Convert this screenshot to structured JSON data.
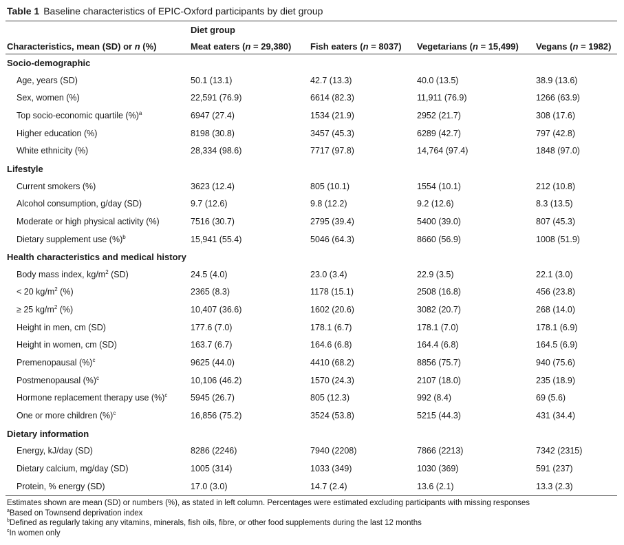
{
  "caption": {
    "label": "Table 1",
    "text": "Baseline characteristics of EPIC-Oxford participants by diet group"
  },
  "header": {
    "group": "Diet group",
    "stub": "Characteristics, mean (SD) or n (%)",
    "columns": [
      "Meat eaters (n = 29,380)",
      "Fish eaters (n = 8037)",
      "Vegetarians (n = 15,499)",
      "Vegans (n = 1982)"
    ]
  },
  "rows": [
    {
      "type": "section",
      "label": "Socio-demographic"
    },
    {
      "type": "data",
      "label": "Age, years (SD)",
      "values": [
        "50.1 (13.1)",
        "42.7 (13.3)",
        "40.0 (13.5)",
        "38.9 (13.6)"
      ]
    },
    {
      "type": "data",
      "label": "Sex, women (%)",
      "values": [
        "22,591 (76.9)",
        "6614 (82.3)",
        "11,911 (76.9)",
        "1266 (63.9)"
      ]
    },
    {
      "type": "data",
      "label": "Top socio-economic quartile (%)",
      "sup": "a",
      "values": [
        "6947 (27.4)",
        "1534 (21.9)",
        "2952 (21.7)",
        "308 (17.6)"
      ]
    },
    {
      "type": "data",
      "label": "Higher education (%)",
      "values": [
        "8198 (30.8)",
        "3457 (45.3)",
        "6289 (42.7)",
        "797 (42.8)"
      ]
    },
    {
      "type": "data",
      "label": "White ethnicity (%)",
      "values": [
        "28,334 (98.6)",
        "7717 (97.8)",
        "14,764 (97.4)",
        "1848 (97.0)"
      ]
    },
    {
      "type": "section",
      "label": "Lifestyle"
    },
    {
      "type": "data",
      "label": "Current smokers (%)",
      "values": [
        "3623 (12.4)",
        "805 (10.1)",
        "1554 (10.1)",
        "212 (10.8)"
      ]
    },
    {
      "type": "data",
      "label": "Alcohol consumption, g/day (SD)",
      "values": [
        "9.7 (12.6)",
        "9.8 (12.2)",
        "9.2 (12.6)",
        "8.3 (13.5)"
      ]
    },
    {
      "type": "data",
      "label": "Moderate or high physical activity (%)",
      "values": [
        "7516 (30.7)",
        "2795 (39.4)",
        "5400 (39.0)",
        "807 (45.3)"
      ]
    },
    {
      "type": "data",
      "label": "Dietary supplement use (%)",
      "sup": "b",
      "values": [
        "15,941 (55.4)",
        "5046 (64.3)",
        "8660 (56.9)",
        "1008 (51.9)"
      ]
    },
    {
      "type": "section",
      "label": "Health characteristics and medical history"
    },
    {
      "type": "data",
      "label": "Body mass index, kg/m",
      "sup": "2",
      "suffix": " (SD)",
      "values": [
        "24.5 (4.0)",
        "23.0 (3.4)",
        "22.9 (3.5)",
        "22.1 (3.0)"
      ]
    },
    {
      "type": "data",
      "label": "< 20 kg/m",
      "sup": "2",
      "suffix": " (%)",
      "values": [
        "2365 (8.3)",
        "1178 (15.1)",
        "2508 (16.8)",
        "456 (23.8)"
      ]
    },
    {
      "type": "data",
      "label": "≥ 25 kg/m",
      "sup": "2",
      "suffix": " (%)",
      "values": [
        "10,407 (36.6)",
        "1602 (20.6)",
        "3082 (20.7)",
        "268 (14.0)"
      ]
    },
    {
      "type": "data",
      "label": "Height in men, cm (SD)",
      "values": [
        "177.6 (7.0)",
        "178.1 (6.7)",
        "178.1 (7.0)",
        "178.1 (6.9)"
      ]
    },
    {
      "type": "data",
      "label": "Height in women, cm (SD)",
      "values": [
        "163.7 (6.7)",
        "164.6 (6.8)",
        "164.4 (6.8)",
        "164.5 (6.9)"
      ]
    },
    {
      "type": "data",
      "label": "Premenopausal (%)",
      "sup": "c",
      "values": [
        "9625 (44.0)",
        "4410 (68.2)",
        "8856 (75.7)",
        "940 (75.6)"
      ]
    },
    {
      "type": "data",
      "label": "Postmenopausal (%)",
      "sup": "c",
      "values": [
        "10,106 (46.2)",
        "1570 (24.3)",
        "2107 (18.0)",
        "235 (18.9)"
      ]
    },
    {
      "type": "data",
      "label": "Hormone replacement therapy use (%)",
      "sup": "c",
      "values": [
        "5945 (26.7)",
        "805 (12.3)",
        "992 (8.4)",
        "69 (5.6)"
      ]
    },
    {
      "type": "data",
      "label": "One or more children (%)",
      "sup": "c",
      "values": [
        "16,856 (75.2)",
        "3524 (53.8)",
        "5215 (44.3)",
        "431 (34.4)"
      ]
    },
    {
      "type": "section",
      "label": "Dietary information"
    },
    {
      "type": "data",
      "label": "Energy, kJ/day (SD)",
      "values": [
        "8286 (2246)",
        "7940 (2208)",
        "7866 (2213)",
        "7342 (2315)"
      ]
    },
    {
      "type": "data",
      "label": "Dietary calcium, mg/day (SD)",
      "values": [
        "1005 (314)",
        "1033 (349)",
        "1030 (369)",
        "591 (237)"
      ]
    },
    {
      "type": "data",
      "label": "Protein, % energy (SD)",
      "values": [
        "17.0 (3.0)",
        "14.7 (2.4)",
        "13.6 (2.1)",
        "13.3 (2.3)"
      ]
    }
  ],
  "footnotes": [
    {
      "mark": "",
      "text": "Estimates shown are mean (SD) or numbers (%), as stated in left column. Percentages were estimated excluding participants with missing responses"
    },
    {
      "mark": "a",
      "text": "Based on Townsend deprivation index"
    },
    {
      "mark": "b",
      "text": "Defined as regularly taking any vitamins, minerals, fish oils, fibre, or other food supplements during the last 12 months"
    },
    {
      "mark": "c",
      "text": "In women only"
    }
  ]
}
